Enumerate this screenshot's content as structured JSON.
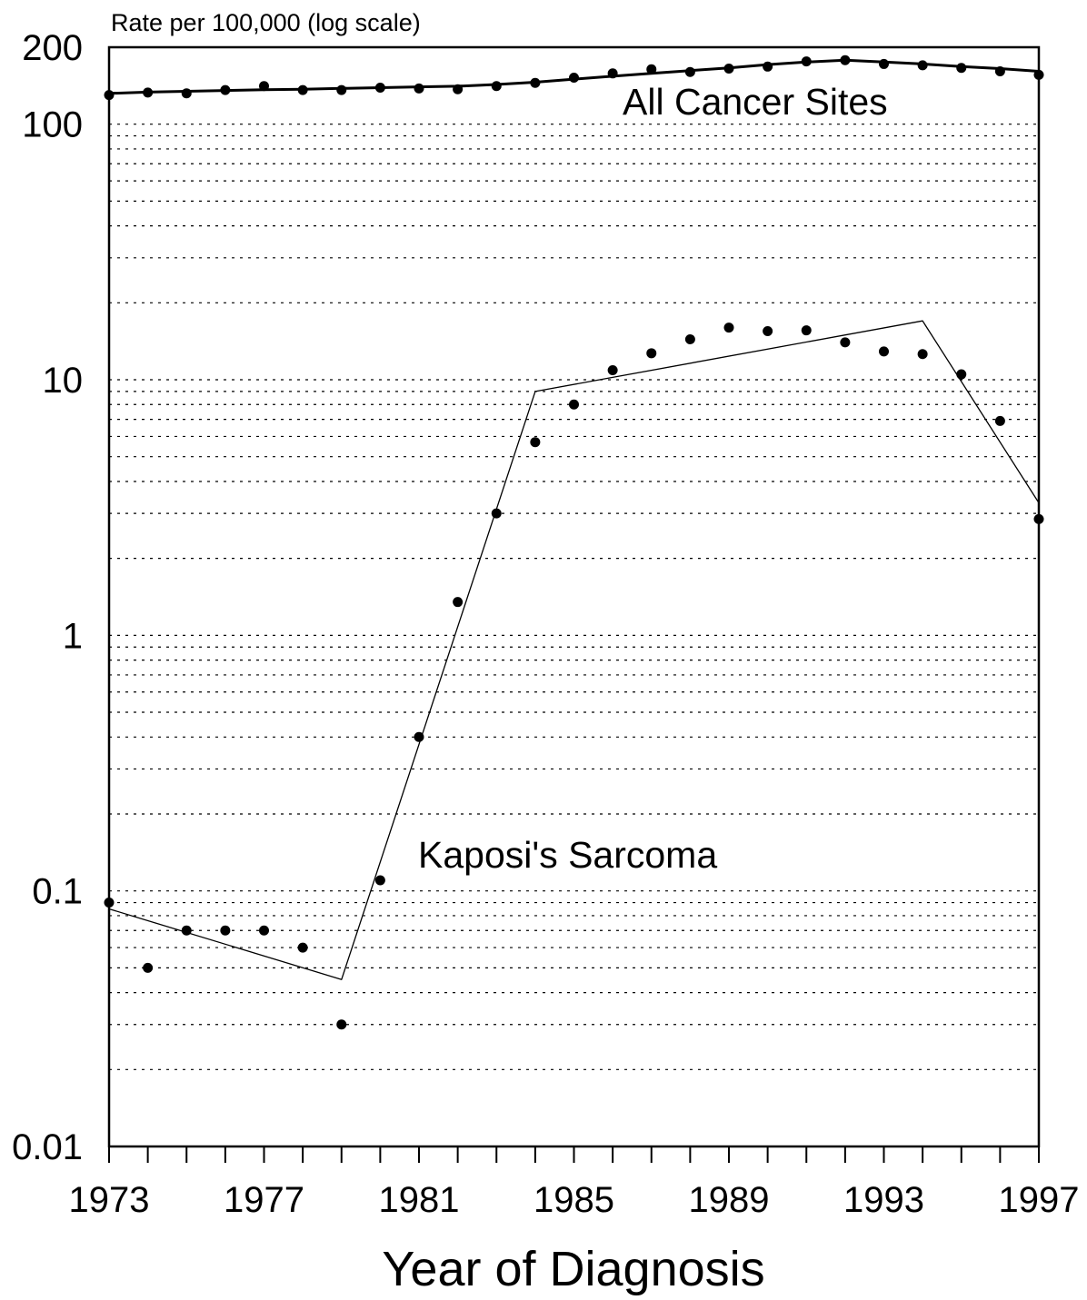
{
  "chart_data": {
    "type": "scatter",
    "ylabel": "Rate per 100,000 (log scale)",
    "xlabel": "Year of Diagnosis",
    "y_scale": "log",
    "ylim": [
      0.01,
      200
    ],
    "xlim": [
      1973,
      1997
    ],
    "y_ticks": [
      0.01,
      0.1,
      1,
      10,
      100,
      200
    ],
    "y_tick_labels": [
      "0.01",
      "0.1",
      "1",
      "10",
      "100",
      "200"
    ],
    "x_ticks": [
      1973,
      1977,
      1981,
      1985,
      1989,
      1993,
      1997
    ],
    "x_tick_labels": [
      "1973",
      "1977",
      "1981",
      "1985",
      "1989",
      "1993",
      "1997"
    ],
    "grid": "dotted horizontal at log minor steps",
    "series": [
      {
        "name": "All Cancer Sites",
        "x": [
          1973,
          1974,
          1975,
          1976,
          1977,
          1978,
          1979,
          1980,
          1981,
          1982,
          1983,
          1984,
          1985,
          1986,
          1987,
          1988,
          1989,
          1990,
          1991,
          1992,
          1993,
          1994,
          1995,
          1996,
          1997
        ],
        "values": [
          130,
          133,
          132,
          136,
          141,
          136,
          136,
          139,
          138,
          137,
          141,
          145,
          152,
          158,
          164,
          160,
          165,
          168,
          176,
          178,
          172,
          170,
          166,
          161,
          156
        ],
        "fit_x": [
          1973,
          1974,
          1975,
          1976,
          1977,
          1978,
          1979,
          1980,
          1981,
          1982,
          1983,
          1984,
          1985,
          1986,
          1987,
          1988,
          1989,
          1990,
          1991,
          1992,
          1993,
          1994,
          1995,
          1996,
          1997
        ],
        "fit_values": [
          132,
          133.5,
          134.5,
          135.5,
          136.5,
          137,
          138,
          139,
          140,
          140.8,
          143,
          146,
          150,
          154,
          158,
          162,
          166,
          171,
          175,
          178,
          175,
          172,
          168,
          165,
          161
        ],
        "fit_style": "thick"
      },
      {
        "name": "Kaposi's Sarcoma",
        "x": [
          1973,
          1974,
          1975,
          1976,
          1977,
          1978,
          1979,
          1980,
          1981,
          1982,
          1983,
          1984,
          1985,
          1986,
          1987,
          1988,
          1989,
          1990,
          1991,
          1992,
          1993,
          1994,
          1995,
          1996,
          1997
        ],
        "values": [
          0.09,
          0.05,
          0.07,
          0.07,
          0.07,
          0.06,
          0.03,
          0.11,
          0.4,
          1.35,
          3.0,
          5.7,
          8.0,
          10.9,
          12.7,
          14.4,
          16.0,
          15.5,
          15.6,
          14.0,
          12.9,
          12.6,
          10.5,
          6.9,
          2.85
        ],
        "fit_x": [
          1973,
          1979,
          1984,
          1994,
          1997
        ],
        "fit_values": [
          0.085,
          0.045,
          9.0,
          17.0,
          3.3
        ],
        "fit_style": "thin"
      }
    ]
  }
}
